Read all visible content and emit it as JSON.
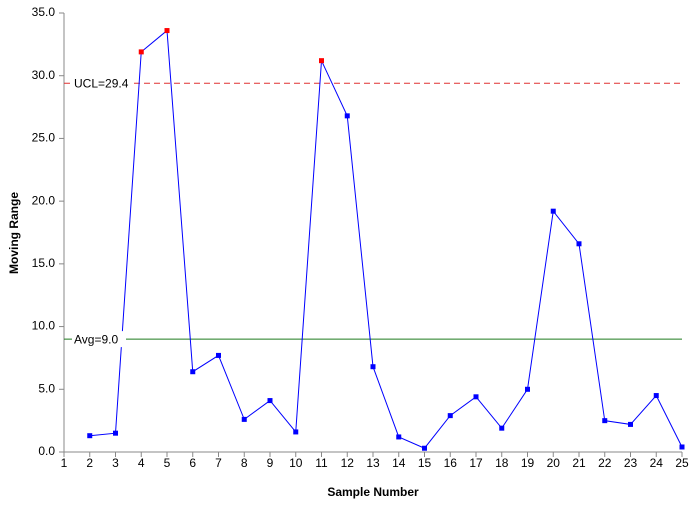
{
  "chart_data": {
    "type": "line",
    "x_label": "Sample Number",
    "y_label": "Moving Range",
    "x": [
      1,
      2,
      3,
      4,
      5,
      6,
      7,
      8,
      9,
      10,
      11,
      12,
      13,
      14,
      15,
      16,
      17,
      18,
      19,
      20,
      21,
      22,
      23,
      24,
      25
    ],
    "series": [
      {
        "name": "Moving Range",
        "color": "#0000ff",
        "out_color": "#ff0000",
        "values": [
          null,
          1.3,
          1.5,
          31.9,
          33.6,
          6.4,
          7.7,
          2.6,
          4.1,
          1.6,
          31.2,
          26.8,
          6.8,
          1.2,
          0.3,
          2.9,
          4.4,
          1.9,
          5.0,
          19.2,
          16.6,
          2.5,
          2.2,
          4.5,
          0.4
        ]
      }
    ],
    "ucl": {
      "value": 29.4,
      "label": "UCL=29.4",
      "color": "#e03030"
    },
    "avg": {
      "value": 9.0,
      "label": "Avg=9.0",
      "color": "#1e7a1e"
    },
    "xlim": [
      1,
      25
    ],
    "ylim": [
      0,
      35
    ],
    "xticks": [
      1,
      2,
      3,
      4,
      5,
      6,
      7,
      8,
      9,
      10,
      11,
      12,
      13,
      14,
      15,
      16,
      17,
      18,
      19,
      20,
      21,
      22,
      23,
      24,
      25
    ],
    "yticks": [
      {
        "value": 0,
        "label": "0.0"
      },
      {
        "value": 5,
        "label": "5.0"
      },
      {
        "value": 10,
        "label": "10.0"
      },
      {
        "value": 15,
        "label": "15.0"
      },
      {
        "value": 20,
        "label": "20.0"
      },
      {
        "value": 25,
        "label": "25.0"
      },
      {
        "value": 30,
        "label": "30.0"
      },
      {
        "value": 35,
        "label": "35.0"
      }
    ]
  }
}
